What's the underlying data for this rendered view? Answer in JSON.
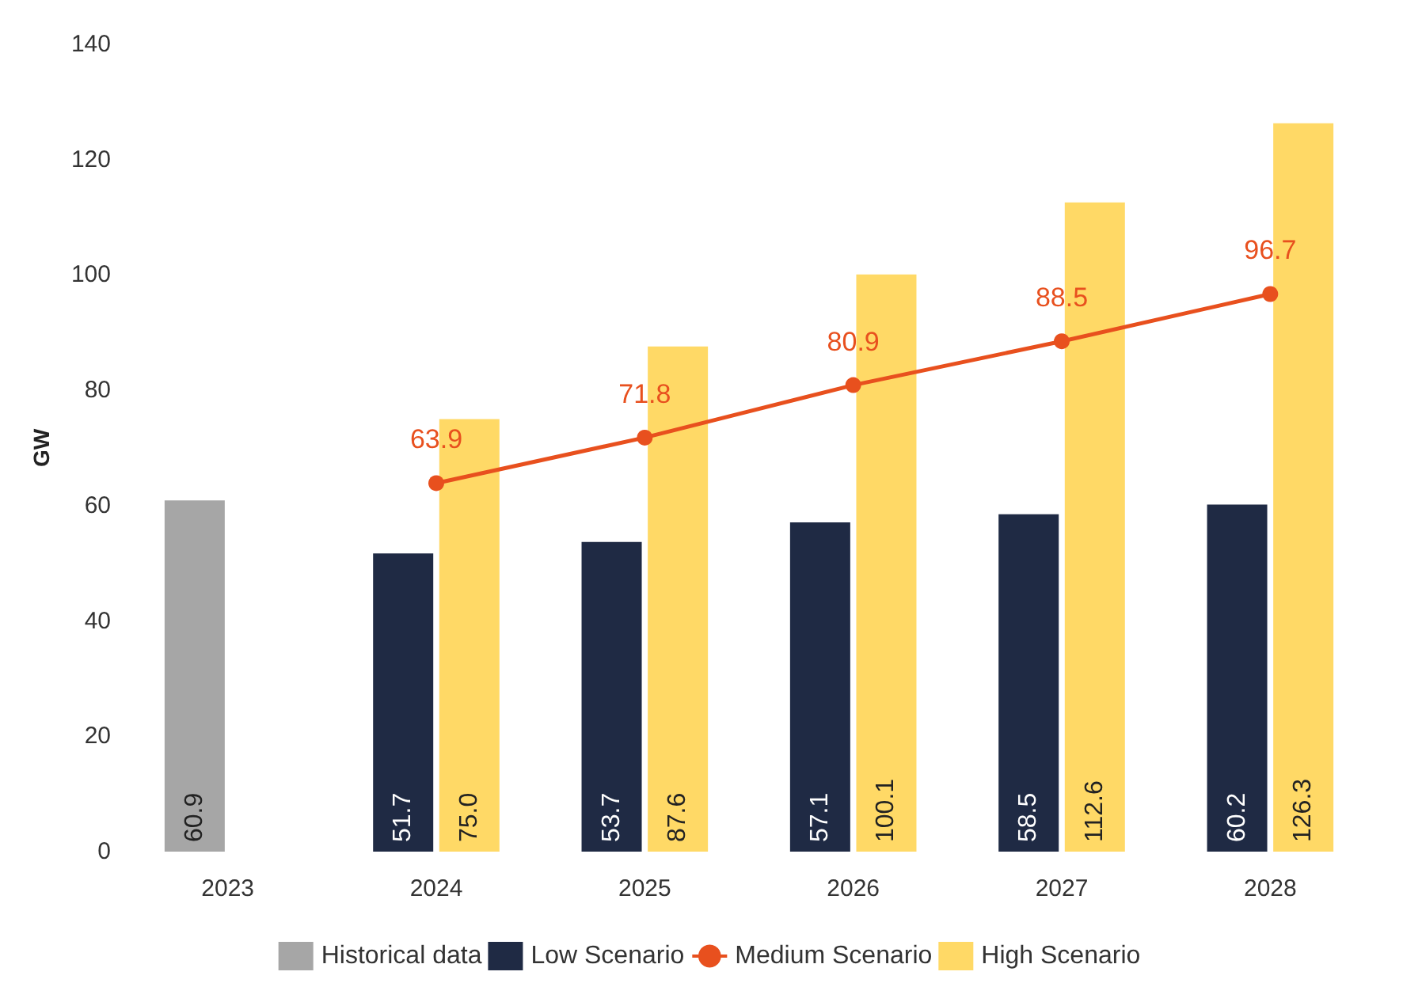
{
  "chart_data": {
    "type": "bar",
    "ylabel": "GW",
    "categories": [
      "2023",
      "2024",
      "2025",
      "2026",
      "2027",
      "2028"
    ],
    "series": [
      {
        "name": "Historical data",
        "color": "#a6a6a6",
        "values": [
          60.9,
          null,
          null,
          null,
          null,
          null
        ],
        "value_labels": [
          "60.9",
          null,
          null,
          null,
          null,
          null
        ]
      },
      {
        "name": "Low Scenario",
        "color": "#1f2a44",
        "values": [
          null,
          51.7,
          53.7,
          57.1,
          58.5,
          60.2
        ],
        "value_labels": [
          null,
          "51.7",
          "53.7",
          "57.1",
          "58.5",
          "60.2"
        ]
      },
      {
        "name": "Medium Scenario",
        "type": "line",
        "color": "#e8501e",
        "marker": "circle",
        "values": [
          null,
          63.9,
          71.8,
          80.9,
          88.5,
          96.7
        ],
        "value_labels": [
          null,
          "63.9",
          "71.8",
          "80.9",
          "88.5",
          "96.7"
        ]
      },
      {
        "name": "High Scenario",
        "color": "#ffd966",
        "values": [
          null,
          75.0,
          87.6,
          100.1,
          112.6,
          126.3
        ],
        "value_labels": [
          null,
          "75.0",
          "87.6",
          "100.1",
          "112.6",
          "126.3"
        ]
      }
    ],
    "ylim": [
      0,
      140
    ],
    "yticks": [
      0,
      20,
      40,
      60,
      80,
      100,
      120,
      140
    ],
    "grid": false,
    "legend": "bottom"
  }
}
